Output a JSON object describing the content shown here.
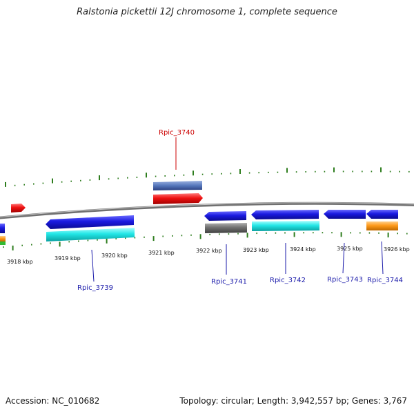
{
  "title": "Ralstonia pickettii 12J chromosome 1, complete sequence",
  "footer": {
    "accession": "Accession: NC_010682",
    "summary": "Topology: circular; Length: 3,942,557 bp; Genes: 3,767"
  },
  "kbp_labels": [
    "3918 kbp",
    "3919 kbp",
    "3920 kbp",
    "3921 kbp",
    "3922 kbp",
    "3923 kbp",
    "3924 kbp",
    "3925 kbp",
    "3926 kbp"
  ],
  "gene_labels": {
    "rpic_3740": "Rpic_3740",
    "rpic_3739": "Rpic_3739",
    "rpic_3741": "Rpic_3741",
    "rpic_3742": "Rpic_3742",
    "rpic_3743": "Rpic_3743",
    "rpic_3744": "Rpic_3744"
  },
  "colors": {
    "highlight_label": "#cc0000",
    "gene_label": "#1a1aaa",
    "backbone": "#808080",
    "tick": "#2e7d1e",
    "cds_blue": "#1a1ae0",
    "cds_cyan": "#22e6e6",
    "cds_red": "#ee1111",
    "cds_gray": "#707070",
    "cds_orange": "#ff9a1a",
    "cds_green": "#33bb33"
  }
}
